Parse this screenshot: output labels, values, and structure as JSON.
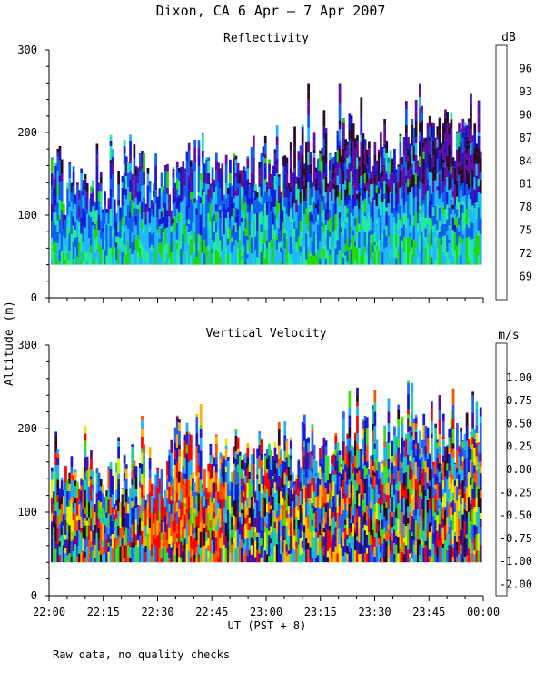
{
  "figure": {
    "title": "Dixon, CA  6 Apr –  7 Apr 2007",
    "ylabel": "Altitude (m)",
    "xlabel": "UT  (PST + 8)",
    "note": "Raw data, no quality checks"
  },
  "chart_data": [
    {
      "type": "heatmap",
      "title": "Reflectivity",
      "colorbar_label": "dB",
      "colorbar_ticks": [
        "69",
        "72",
        "75",
        "78",
        "81",
        "84",
        "87",
        "90",
        "93",
        "96"
      ],
      "colorbar_range": [
        67.5,
        97.5
      ],
      "colors": [
        "#c8ff00",
        "#22d800",
        "#22e8a0",
        "#20b8f8",
        "#1060f0",
        "#1818d0",
        "#6010a0",
        "#2a0c2a",
        "#ff0000",
        "#ff7a00",
        "#ffc800"
      ],
      "x_ticks": [
        "22:00",
        "22:15",
        "22:30",
        "22:45",
        "23:00",
        "23:15",
        "23:30",
        "23:45",
        "00:00"
      ],
      "xlim_minutes": [
        0,
        120
      ],
      "ylim": [
        0,
        300
      ],
      "y_ticks": [
        0,
        100,
        200,
        300
      ],
      "data_floor_m": 40,
      "max_echo_height_m": 260,
      "sample_count": 220
    },
    {
      "type": "heatmap",
      "title": "Vertical Velocity",
      "colorbar_label": "m/s",
      "colorbar_ticks": [
        "-2.00",
        "-1.00",
        "-0.75",
        "-0.50",
        "-0.25",
        "0.00",
        "0.25",
        "0.50",
        "0.75",
        "1.00"
      ],
      "colorbar_range": [
        -2.125,
        1.125
      ],
      "colors": [
        "#2a0a2a",
        "#581090",
        "#1818d0",
        "#2a60f0",
        "#20b0f0",
        "#20d888",
        "#40e000",
        "#e6f000",
        "#ffb000",
        "#ff5000",
        "#ff0000"
      ],
      "x_ticks": [
        "22:00",
        "22:15",
        "22:30",
        "22:45",
        "23:00",
        "23:15",
        "23:30",
        "23:45",
        "00:00"
      ],
      "xlim_minutes": [
        0,
        120
      ],
      "ylim": [
        0,
        300
      ],
      "y_ticks": [
        0,
        100,
        200,
        300
      ],
      "data_floor_m": 40,
      "max_echo_height_m": 260,
      "sample_count": 220
    }
  ]
}
